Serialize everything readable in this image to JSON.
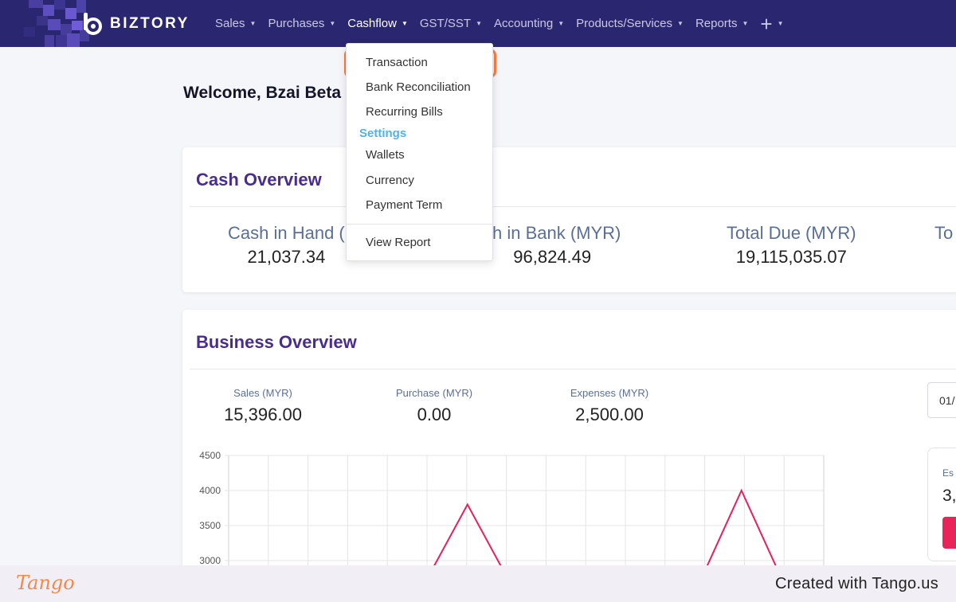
{
  "brand": {
    "name": "BIZTORY",
    "primary": "#2a2770",
    "accent": "#4a2c91",
    "highlight": "#ff7a3d",
    "chart_line": "#e8205a"
  },
  "nav": {
    "items": [
      {
        "label": "Sales"
      },
      {
        "label": "Purchases"
      },
      {
        "label": "Cashflow",
        "active": true
      },
      {
        "label": "GST/SST"
      },
      {
        "label": "Accounting"
      },
      {
        "label": "Products/Services"
      },
      {
        "label": "Reports"
      }
    ],
    "plus_label": "+"
  },
  "dropdown": {
    "items": [
      "Transaction",
      "Bank Reconciliation",
      "Recurring Bills"
    ],
    "section": "Settings",
    "settings_items": [
      "Wallets",
      "Currency",
      "Payment Term"
    ],
    "footer_item": "View Report"
  },
  "welcome": "Welcome, Bzai Beta",
  "cash_overview": {
    "title": "Cash Overview",
    "stats": [
      {
        "label": "Cash in Hand (",
        "value": "21,037.34"
      },
      {
        "label": "sh in Bank (MYR)",
        "value": "96,824.49"
      },
      {
        "label": "Total Due (MYR)",
        "value": "19,115,035.07"
      },
      {
        "label": "To",
        "value": ""
      }
    ]
  },
  "business_overview": {
    "title": "Business Overview",
    "stats": [
      {
        "label": "Sales (MYR)",
        "value": "15,396.00"
      },
      {
        "label": "Purchase (MYR)",
        "value": "0.00"
      },
      {
        "label": "Expenses (MYR)",
        "value": "2,500.00"
      }
    ],
    "date_value": "01/",
    "side_label": "Es",
    "side_value": "3,"
  },
  "chart_data": {
    "type": "line",
    "ylim": [
      3000,
      4500
    ],
    "yticks": [
      4500,
      4000,
      3500,
      3000
    ],
    "series": [
      {
        "values": [
          3000,
          3000,
          3000,
          3000,
          3000,
          3000,
          3800,
          3000,
          3000,
          3000,
          3000,
          3000,
          3000,
          4000,
          3000,
          3000
        ]
      }
    ]
  },
  "footer": {
    "logo": "Tango",
    "credit": "Created with Tango.us"
  }
}
